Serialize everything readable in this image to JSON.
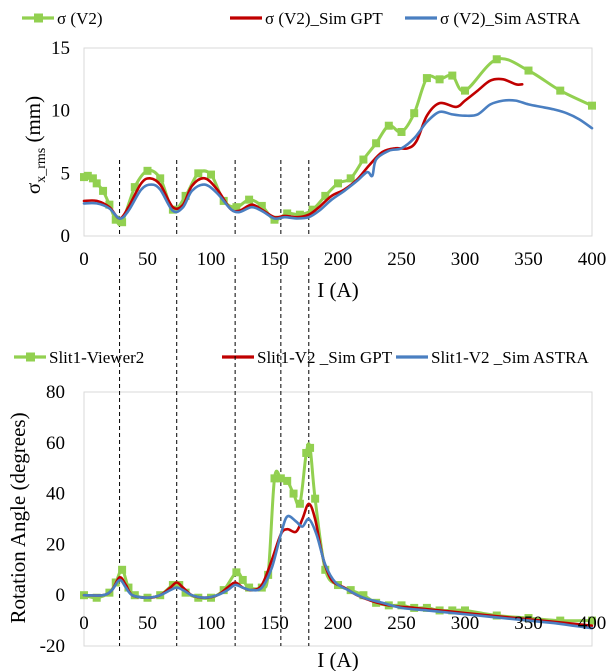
{
  "chart_data": [
    {
      "type": "line",
      "title": "",
      "xlabel": "I (A)",
      "ylabel_main": "σ",
      "ylabel_sub": "x_rms",
      "ylabel_unit": " (mm)",
      "xlim": [
        0,
        400
      ],
      "ylim": [
        0,
        15
      ],
      "xticks": [
        0,
        50,
        100,
        150,
        200,
        250,
        300,
        350,
        400
      ],
      "yticks": [
        0,
        5,
        10,
        15
      ],
      "grid": false,
      "legend_position": "top",
      "guide_lines_x": [
        28,
        73,
        119,
        155,
        177
      ],
      "series": [
        {
          "name": "σ (V2)",
          "color": "#92d050",
          "marker": "square",
          "points": [
            [
              0,
              4.7
            ],
            [
              3,
              4.8
            ],
            [
              7,
              4.6
            ],
            [
              10,
              4.2
            ],
            [
              15,
              3.6
            ],
            [
              20,
              2.5
            ],
            [
              25,
              1.3
            ],
            [
              30,
              1.1
            ],
            [
              40,
              3.9
            ],
            [
              50,
              5.2
            ],
            [
              60,
              4.6
            ],
            [
              70,
              2.1
            ],
            [
              80,
              3.2
            ],
            [
              90,
              5.0
            ],
            [
              100,
              4.9
            ],
            [
              110,
              2.8
            ],
            [
              120,
              2.3
            ],
            [
              130,
              2.9
            ],
            [
              140,
              2.4
            ],
            [
              150,
              1.3
            ],
            [
              160,
              1.8
            ],
            [
              170,
              1.7
            ],
            [
              180,
              2.1
            ],
            [
              190,
              3.2
            ],
            [
              200,
              4.2
            ],
            [
              210,
              4.6
            ],
            [
              220,
              6.1
            ],
            [
              230,
              7.4
            ],
            [
              240,
              8.8
            ],
            [
              250,
              8.3
            ],
            [
              260,
              9.8
            ],
            [
              270,
              12.6
            ],
            [
              280,
              12.5
            ],
            [
              290,
              12.8
            ],
            [
              300,
              11.6
            ],
            [
              325,
              14.1
            ],
            [
              350,
              13.2
            ],
            [
              375,
              11.6
            ],
            [
              400,
              10.4
            ]
          ]
        },
        {
          "name": "σ (V2)_Sim GPT",
          "color": "#c00000",
          "marker": "none",
          "points": [
            [
              0,
              2.8
            ],
            [
              10,
              2.8
            ],
            [
              20,
              2.3
            ],
            [
              28,
              1.4
            ],
            [
              35,
              2.3
            ],
            [
              45,
              4.2
            ],
            [
              52,
              4.6
            ],
            [
              60,
              4.1
            ],
            [
              70,
              2.3
            ],
            [
              78,
              2.5
            ],
            [
              85,
              4.0
            ],
            [
              95,
              4.6
            ],
            [
              105,
              3.7
            ],
            [
              115,
              2.2
            ],
            [
              122,
              2.0
            ],
            [
              132,
              2.5
            ],
            [
              140,
              2.1
            ],
            [
              150,
              1.5
            ],
            [
              158,
              1.6
            ],
            [
              168,
              1.5
            ],
            [
              177,
              1.7
            ],
            [
              185,
              2.3
            ],
            [
              195,
              3.2
            ],
            [
              205,
              3.7
            ],
            [
              215,
              4.5
            ],
            [
              225,
              5.7
            ],
            [
              235,
              6.7
            ],
            [
              245,
              7.0
            ],
            [
              255,
              7.0
            ],
            [
              262,
              7.6
            ],
            [
              270,
              9.6
            ],
            [
              280,
              10.6
            ],
            [
              293,
              10.3
            ],
            [
              300,
              10.8
            ],
            [
              310,
              11.6
            ],
            [
              320,
              12.4
            ],
            [
              330,
              12.5
            ],
            [
              340,
              12.1
            ],
            [
              345,
              12.1
            ]
          ]
        },
        {
          "name": "σ (V2)_Sim ASTRA",
          "color": "#4a7fc1",
          "marker": "none",
          "points": [
            [
              0,
              2.6
            ],
            [
              10,
              2.6
            ],
            [
              20,
              2.2
            ],
            [
              28,
              1.4
            ],
            [
              35,
              2.0
            ],
            [
              45,
              3.7
            ],
            [
              53,
              4.1
            ],
            [
              60,
              3.7
            ],
            [
              70,
              2.0
            ],
            [
              78,
              2.3
            ],
            [
              85,
              3.6
            ],
            [
              95,
              4.1
            ],
            [
              105,
              3.4
            ],
            [
              115,
              2.2
            ],
            [
              122,
              1.9
            ],
            [
              132,
              2.3
            ],
            [
              140,
              2.0
            ],
            [
              150,
              1.4
            ],
            [
              158,
              1.5
            ],
            [
              168,
              1.4
            ],
            [
              177,
              1.5
            ],
            [
              185,
              2.0
            ],
            [
              195,
              2.9
            ],
            [
              205,
              3.6
            ],
            [
              215,
              4.4
            ],
            [
              223,
              5.1
            ],
            [
              227,
              4.8
            ],
            [
              230,
              6.1
            ],
            [
              240,
              6.8
            ],
            [
              250,
              7.0
            ],
            [
              260,
              7.8
            ],
            [
              270,
              9.1
            ],
            [
              280,
              9.9
            ],
            [
              290,
              9.7
            ],
            [
              300,
              9.6
            ],
            [
              310,
              9.7
            ],
            [
              320,
              10.5
            ],
            [
              330,
              10.8
            ],
            [
              340,
              10.8
            ],
            [
              350,
              10.5
            ],
            [
              360,
              10.3
            ],
            [
              370,
              10.1
            ],
            [
              380,
              9.8
            ],
            [
              390,
              9.3
            ],
            [
              400,
              8.6
            ]
          ]
        }
      ]
    },
    {
      "type": "line",
      "title": "",
      "xlabel": "I (A)",
      "ylabel": "Rotation Angle (degrees)",
      "xlim": [
        0,
        400
      ],
      "ylim": [
        -20,
        80
      ],
      "xticks": [
        0,
        50,
        100,
        150,
        200,
        250,
        300,
        350,
        400
      ],
      "yticks": [
        -20,
        0,
        20,
        40,
        60,
        80
      ],
      "grid": false,
      "legend_position": "top",
      "guide_lines_x": [
        28,
        73,
        119,
        155,
        177
      ],
      "series": [
        {
          "name": "Slit1-Viewer2",
          "color": "#92d050",
          "marker": "square",
          "points": [
            [
              0,
              0
            ],
            [
              10,
              -1
            ],
            [
              20,
              1
            ],
            [
              25,
              5
            ],
            [
              30,
              10
            ],
            [
              35,
              3
            ],
            [
              40,
              0
            ],
            [
              50,
              -1
            ],
            [
              60,
              0
            ],
            [
              70,
              4
            ],
            [
              75,
              4
            ],
            [
              80,
              1
            ],
            [
              90,
              -1
            ],
            [
              100,
              -1
            ],
            [
              110,
              2
            ],
            [
              120,
              9
            ],
            [
              125,
              6
            ],
            [
              130,
              3
            ],
            [
              140,
              3
            ],
            [
              145,
              8
            ],
            [
              150,
              46
            ],
            [
              155,
              46
            ],
            [
              160,
              45
            ],
            [
              165,
              40
            ],
            [
              170,
              36
            ],
            [
              175,
              56
            ],
            [
              178,
              58
            ],
            [
              182,
              38
            ],
            [
              190,
              10
            ],
            [
              200,
              4
            ],
            [
              210,
              2
            ],
            [
              220,
              0
            ],
            [
              230,
              -3
            ],
            [
              240,
              -4
            ],
            [
              250,
              -4
            ],
            [
              260,
              -5
            ],
            [
              270,
              -5
            ],
            [
              280,
              -6
            ],
            [
              290,
              -6
            ],
            [
              300,
              -6
            ],
            [
              325,
              -8
            ],
            [
              350,
              -9
            ],
            [
              375,
              -10
            ],
            [
              400,
              -10
            ]
          ]
        },
        {
          "name": "Slit1-V2 _Sim GPT",
          "color": "#c00000",
          "marker": "none",
          "points": [
            [
              0,
              0
            ],
            [
              15,
              0
            ],
            [
              22,
              2
            ],
            [
              28,
              7
            ],
            [
              33,
              4
            ],
            [
              38,
              0
            ],
            [
              50,
              -1
            ],
            [
              60,
              0
            ],
            [
              68,
              3
            ],
            [
              73,
              5
            ],
            [
              78,
              3
            ],
            [
              85,
              0
            ],
            [
              95,
              -1
            ],
            [
              105,
              0
            ],
            [
              113,
              3
            ],
            [
              119,
              5
            ],
            [
              125,
              3
            ],
            [
              132,
              2
            ],
            [
              140,
              4
            ],
            [
              148,
              14
            ],
            [
              155,
              24
            ],
            [
              160,
              26
            ],
            [
              167,
              25
            ],
            [
              172,
              30
            ],
            [
              177,
              36
            ],
            [
              182,
              30
            ],
            [
              188,
              15
            ],
            [
              195,
              6
            ],
            [
              205,
              3
            ],
            [
              215,
              0
            ],
            [
              225,
              -2
            ],
            [
              240,
              -4
            ],
            [
              260,
              -5
            ],
            [
              280,
              -6
            ],
            [
              300,
              -7
            ],
            [
              320,
              -8
            ],
            [
              340,
              -9
            ],
            [
              360,
              -10
            ],
            [
              380,
              -11
            ],
            [
              400,
              -12
            ]
          ]
        },
        {
          "name": "Slit1-V2 _Sim ASTRA",
          "color": "#4a7fc1",
          "marker": "none",
          "points": [
            [
              0,
              0
            ],
            [
              15,
              0
            ],
            [
              22,
              2
            ],
            [
              28,
              6
            ],
            [
              33,
              3
            ],
            [
              38,
              0
            ],
            [
              50,
              -1
            ],
            [
              60,
              0
            ],
            [
              68,
              2
            ],
            [
              73,
              3
            ],
            [
              78,
              2
            ],
            [
              85,
              0
            ],
            [
              95,
              -1
            ],
            [
              105,
              0
            ],
            [
              113,
              2
            ],
            [
              119,
              4
            ],
            [
              125,
              3
            ],
            [
              132,
              2
            ],
            [
              140,
              3
            ],
            [
              148,
              11
            ],
            [
              155,
              24
            ],
            [
              160,
              31
            ],
            [
              167,
              29
            ],
            [
              172,
              27
            ],
            [
              177,
              30
            ],
            [
              183,
              24
            ],
            [
              190,
              12
            ],
            [
              198,
              5
            ],
            [
              208,
              2
            ],
            [
              220,
              -1
            ],
            [
              235,
              -3
            ],
            [
              250,
              -5
            ],
            [
              270,
              -6
            ],
            [
              290,
              -7
            ],
            [
              310,
              -8
            ],
            [
              330,
              -9
            ],
            [
              350,
              -10
            ],
            [
              370,
              -11
            ],
            [
              385,
              -12
            ],
            [
              400,
              -13
            ]
          ]
        }
      ]
    }
  ]
}
